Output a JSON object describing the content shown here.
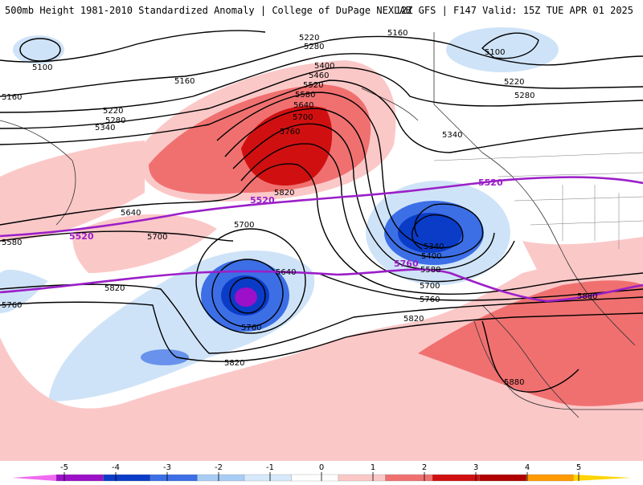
{
  "header": {
    "left_title": "500mb Height 1981-2010 Standardized Anomaly | College of DuPage NEXLAB",
    "right_title": "12Z GFS | F147 Valid: 15Z TUE APR 01 2025"
  },
  "contours": {
    "labels": [
      "5100",
      "5160",
      "5220",
      "5280",
      "5340",
      "5400",
      "5460",
      "5520",
      "5580",
      "5640",
      "5700",
      "5760",
      "5820",
      "5880"
    ]
  },
  "reference_lines": {
    "label_5520": "5520",
    "label_5760": "5760"
  },
  "colorbar": {
    "ticks": [
      "-5",
      "-4",
      "-3",
      "-2",
      "-1",
      "0",
      "1",
      "2",
      "3",
      "4",
      "5"
    ],
    "colors": [
      "#f06af0",
      "#9b10c8",
      "#0a3cc8",
      "#3c6fe6",
      "#a8cdf5",
      "#d6e9fb",
      "#ffffff",
      "#fbc8c8",
      "#f07070",
      "#d01010",
      "#b00000",
      "#ff9a00",
      "#ffd400"
    ]
  }
}
